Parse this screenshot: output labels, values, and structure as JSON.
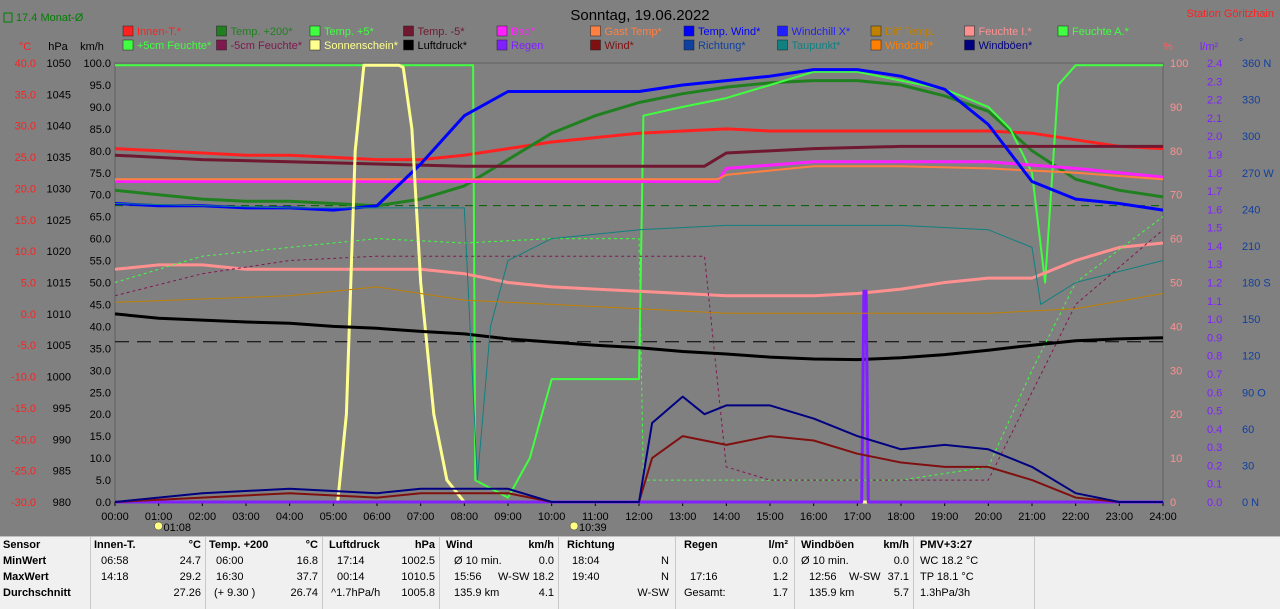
{
  "title": "Sonntag, 19.06.2022",
  "station": "Station Göritzhain",
  "avg_label": "17.4 Monat-Ø",
  "legend": [
    {
      "label": "Innen-T.*",
      "color": "#ff2020"
    },
    {
      "label": "Temp. +200*",
      "color": "#208020"
    },
    {
      "label": "Temp. +5*",
      "color": "#40ff40"
    },
    {
      "label": "Temp. -5*",
      "color": "#701830"
    },
    {
      "label": "Bad*",
      "color": "#ff20ff"
    },
    {
      "label": "Gast Temp*",
      "color": "#ff8040"
    },
    {
      "label": "Temp. Wind*",
      "color": "#0000ff"
    },
    {
      "label": "Windchill X*",
      "color": "#2020ff"
    },
    {
      "label": "Diff Temp.",
      "color": "#c08000"
    },
    {
      "label": "Feuchte I.*",
      "color": "#ff9090"
    },
    {
      "label": "Feuchte A.*",
      "color": "#40ff40"
    },
    {
      "label": "+5cm Feuchte*",
      "color": "#40ff40"
    },
    {
      "label": "-5cm Feuchte*",
      "color": "#801850"
    },
    {
      "label": "Sonnenschein*",
      "color": "#ffff90"
    },
    {
      "label": "Luftdruck*",
      "color": "#000000"
    },
    {
      "label": "Regen",
      "color": "#8020ff"
    },
    {
      "label": "Wind*",
      "color": "#801010"
    },
    {
      "label": "Richtung*",
      "color": "#1040a0"
    },
    {
      "label": "Taupunkt*",
      "color": "#108080"
    },
    {
      "label": "Windchill*",
      "color": "#ff8000"
    },
    {
      "label": "Windböen*",
      "color": "#000080"
    }
  ],
  "axis_headers": {
    "temp": "°C",
    "pressure": "hPa",
    "wind": "km/h",
    "percent": "%",
    "rain": "l/m²",
    "dir": "°"
  },
  "stats": {
    "headers": {
      "sensor": "Sensor",
      "innen": "Innen-T.",
      "innen_u": "°C",
      "temp": "Temp. +200",
      "temp_u": "°C",
      "druck": "Luftdruck",
      "druck_u": "hPa",
      "wind": "Wind",
      "wind_u": "km/h",
      "richtung": "Richtung",
      "regen": "Regen",
      "regen_u": "l/m²",
      "boeen": "Windböen",
      "boeen_u": "km/h",
      "pmv": "PMV+3:27"
    },
    "rows": [
      {
        "label": "MinWert",
        "innen_t": "06:58",
        "innen_v": "24.7",
        "temp_t": "06:00",
        "temp_v": "16.8",
        "druck_t": "17:14",
        "druck_v": "1002.5",
        "wind_t": "Ø 10 min.",
        "wind_v": "0.0",
        "richt_t": "18:04",
        "richt_v": "N",
        "regen_t": "",
        "regen_v": "0.0",
        "boeen_t": "Ø 10 min.",
        "boeen_v": "0.0",
        "pmv": "WC 18.2 °C"
      },
      {
        "label": "MaxWert",
        "innen_t": "14:18",
        "innen_v": "29.2",
        "temp_t": "16:30",
        "temp_v": "37.7",
        "druck_t": "00:14",
        "druck_v": "1010.5",
        "wind_t": "15:56",
        "wind_m": "W-SW",
        "wind_v": "18.2",
        "richt_t": "19:40",
        "richt_v": "N",
        "regen_t": "17:16",
        "regen_v": "1.2",
        "boeen_t": "12:56",
        "boeen_m": "W-SW",
        "boeen_v": "37.1",
        "pmv": "TP 18.1 °C"
      },
      {
        "label": "Durchschnitt",
        "innen_t": "",
        "innen_v": "27.26",
        "temp_t": "(+ 9.30 )",
        "temp_v": "26.74",
        "druck_t": "^1.7hPa/h",
        "druck_v": "1005.8",
        "wind_t": "135.9 km",
        "wind_v": "4.1",
        "richt_t": "",
        "richt_v": "W-SW",
        "regen_t": "Gesamt:",
        "regen_v": "1.7",
        "boeen_t": "135.9 km",
        "boeen_v": "5.7",
        "pmv": "1.3hPa/3h"
      }
    ]
  },
  "markers": {
    "sunrise": "01:08",
    "sunset": "10:39"
  },
  "chart_data": {
    "type": "line",
    "title": "Sonntag, 19.06.2022",
    "x_ticks": [
      "00:00",
      "01:00",
      "02:00",
      "03:00",
      "04:00",
      "05:00",
      "06:00",
      "07:00",
      "08:00",
      "09:00",
      "10:00",
      "11:00",
      "12:00",
      "13:00",
      "14:00",
      "15:00",
      "16:00",
      "17:00",
      "18:00",
      "19:00",
      "20:00",
      "21:00",
      "22:00",
      "23:00",
      "24:00"
    ],
    "xlim": [
      0,
      24
    ],
    "y_axes": {
      "temp": {
        "ticks": [
          "40.0",
          "35.0",
          "30.0",
          "25.0",
          "20.0",
          "15.0",
          "10.0",
          "5.0",
          "0.0",
          "-5.0",
          "-10.0",
          "-15.0",
          "-20.0",
          "-25.0",
          "-30.0"
        ],
        "range": [
          -30,
          40
        ]
      },
      "pressure": {
        "ticks": [
          "1050",
          "1045",
          "1040",
          "1035",
          "1030",
          "1025",
          "1020",
          "1015",
          "1010",
          "1005",
          "1000",
          "995",
          "990",
          "985",
          "980"
        ],
        "range": [
          980,
          1050
        ]
      },
      "wind": {
        "ticks": [
          "100.0",
          "95.0",
          "90.0",
          "85.0",
          "80.0",
          "75.0",
          "70.0",
          "65.0",
          "60.0",
          "55.0",
          "50.0",
          "45.0",
          "40.0",
          "35.0",
          "30.0",
          "25.0",
          "20.0",
          "15.0",
          "10.0",
          "5.0",
          "0.0"
        ],
        "range": [
          0,
          100
        ]
      },
      "percent": {
        "ticks": [
          "100",
          "90",
          "80",
          "70",
          "60",
          "50",
          "40",
          "30",
          "20",
          "10",
          "0"
        ],
        "range": [
          0,
          100
        ]
      },
      "rain": {
        "ticks": [
          "2.4",
          "2.3",
          "2.2",
          "2.1",
          "2.0",
          "1.9",
          "1.8",
          "1.7",
          "1.6",
          "1.5",
          "1.4",
          "1.3",
          "1.2",
          "1.1",
          "1.0",
          "0.9",
          "0.8",
          "0.7",
          "0.6",
          "0.5",
          "0.4",
          "0.3",
          "0.2",
          "0.1",
          "0.0"
        ],
        "range": [
          0,
          2.5
        ]
      },
      "dir": {
        "ticks": [
          "360 N",
          "330",
          "300",
          "270 W",
          "240",
          "210",
          "180 S",
          "150",
          "120",
          "90 O",
          "60",
          "30",
          "0 N"
        ],
        "range": [
          0,
          360
        ]
      }
    },
    "series": [
      {
        "name": "Innen-T.*",
        "color": "#ff2020",
        "width": 3,
        "axis": "wind",
        "x": [
          0,
          1,
          2,
          3,
          4,
          5,
          6,
          7,
          8,
          9,
          10,
          11,
          12,
          13,
          14,
          15,
          16,
          17,
          18,
          19,
          20,
          21,
          22,
          23,
          24
        ],
        "y": [
          80.5,
          80,
          79.5,
          79,
          79,
          78.5,
          78,
          78,
          79,
          80.5,
          82,
          83,
          84,
          84.5,
          85,
          84.5,
          84.5,
          84.5,
          84.5,
          84.5,
          84.5,
          84,
          82.5,
          81,
          80.5
        ]
      },
      {
        "name": "Temp. +200*",
        "color": "#208020",
        "width": 3,
        "axis": "wind",
        "x": [
          0,
          1,
          2,
          3,
          4,
          5,
          6,
          7,
          8,
          9,
          10,
          11,
          12,
          13,
          14,
          15,
          16,
          17,
          18,
          19,
          20,
          21,
          22,
          23,
          24
        ],
        "y": [
          71,
          70,
          69,
          68.5,
          68.5,
          68,
          67.5,
          69,
          72,
          78,
          84,
          88,
          91,
          93,
          94.5,
          95.5,
          96,
          96,
          95,
          92.5,
          89,
          80,
          73.5,
          71,
          69.5
        ]
      },
      {
        "name": "Temp. +5*",
        "color": "#40ff40",
        "width": 2,
        "axis": "wind",
        "x": [
          0,
          0.5,
          8.2,
          8.25,
          9,
          9.5,
          10,
          11,
          12,
          12.1,
          13,
          14,
          15,
          16,
          17,
          18,
          19,
          20,
          20.5,
          21,
          21.3,
          21.6,
          22,
          24
        ],
        "y": [
          99.5,
          99.5,
          99.5,
          5,
          1,
          10,
          28,
          28,
          28,
          88,
          90,
          92,
          95,
          98,
          98,
          96,
          94,
          90,
          85,
          75,
          50,
          95,
          99.5,
          99.5
        ]
      },
      {
        "name": "Temp. -5*",
        "color": "#701830",
        "width": 3,
        "axis": "wind",
        "x": [
          0,
          2,
          4,
          6,
          8,
          10,
          12,
          13.5,
          14,
          16,
          18,
          20,
          22,
          24
        ],
        "y": [
          79,
          78,
          77.5,
          77,
          76.5,
          76.5,
          76.5,
          76.5,
          79.5,
          80.5,
          81,
          81,
          81,
          81
        ]
      },
      {
        "name": "Bad*",
        "color": "#ff20ff",
        "width": 3,
        "axis": "wind",
        "x": [
          0,
          13.8,
          14,
          16,
          18,
          20,
          22,
          24
        ],
        "y": [
          73,
          73,
          76,
          77.5,
          77.5,
          77.5,
          76,
          74
        ]
      },
      {
        "name": "Gast Temp*",
        "color": "#ff8040",
        "width": 2,
        "axis": "wind",
        "x": [
          0,
          13.8,
          14,
          16,
          18,
          20,
          22,
          24
        ],
        "y": [
          73.5,
          73.5,
          74.5,
          76.5,
          76.5,
          76,
          75,
          73.5
        ]
      },
      {
        "name": "Temp. Wind*",
        "color": "#0000ff",
        "width": 3,
        "axis": "wind",
        "x": [
          0,
          1,
          2,
          3,
          4,
          5,
          6,
          7,
          8,
          9,
          10,
          11,
          12,
          13,
          14,
          15,
          16,
          17,
          18,
          19,
          20,
          21,
          22,
          23,
          24
        ],
        "y": [
          68,
          67.5,
          67.5,
          67,
          67,
          66.5,
          67.5,
          77,
          88,
          93.5,
          93.5,
          93.5,
          93.5,
          95,
          96,
          97,
          98.5,
          98.5,
          97,
          94,
          86,
          73,
          69,
          68,
          66.5
        ]
      },
      {
        "name": "Feuchte I.*",
        "color": "#ff9090",
        "width": 3,
        "axis": "percent",
        "x": [
          0,
          1,
          2,
          3,
          4,
          5,
          6,
          7,
          8,
          9,
          10,
          11,
          12,
          13,
          14,
          15,
          16,
          17,
          18,
          19,
          20,
          21,
          22,
          23,
          24
        ],
        "y": [
          53,
          54,
          54,
          53,
          53,
          53,
          53,
          53,
          52,
          50,
          49,
          48.5,
          48,
          47.5,
          47,
          47,
          47,
          47.5,
          48.5,
          50,
          51,
          51,
          55,
          58,
          59
        ]
      },
      {
        "name": "+5cm Feuchte*",
        "color": "#40ff40",
        "width": 1,
        "dash": "3,3",
        "axis": "percent",
        "x": [
          0,
          2,
          4,
          6,
          8,
          10,
          11,
          12,
          12.1,
          14,
          16,
          18,
          20,
          21,
          22,
          24
        ],
        "y": [
          50,
          56,
          58,
          60,
          59,
          60,
          60,
          60,
          5,
          5,
          5,
          5,
          8,
          30,
          50,
          65
        ]
      },
      {
        "name": "-5cm Feuchte*",
        "color": "#801850",
        "width": 1,
        "dash": "3,3",
        "axis": "percent",
        "x": [
          0,
          2,
          4,
          6,
          8,
          10,
          12,
          13.5,
          14,
          15,
          20,
          21,
          22,
          24
        ],
        "y": [
          47,
          52,
          55,
          56,
          56,
          56,
          56,
          56,
          8,
          5,
          5,
          25,
          45,
          62
        ]
      },
      {
        "name": "Sonnenschein*",
        "color": "#ffff90",
        "width": 3,
        "axis": "wind",
        "x": [
          0,
          5.1,
          5.3,
          5.5,
          5.7,
          6,
          6.5,
          6.6,
          6.8,
          7,
          7.3,
          7.6,
          8,
          9,
          24
        ],
        "y": [
          0,
          0,
          20,
          80,
          99.5,
          99.5,
          99.5,
          99,
          85,
          50,
          20,
          5,
          0,
          0,
          0
        ]
      },
      {
        "name": "Luftdruck*",
        "color": "#000000",
        "width": 3,
        "axis": "pressure",
        "x": [
          0,
          1,
          2,
          3,
          4,
          5,
          6,
          7,
          8,
          9,
          10,
          11,
          12,
          13,
          14,
          15,
          16,
          17,
          18,
          19,
          20,
          21,
          22,
          23,
          24
        ],
        "y": [
          1010,
          1009.3,
          1009,
          1008.7,
          1008.5,
          1008,
          1007.7,
          1007.2,
          1006.8,
          1006,
          1005.5,
          1005,
          1004.6,
          1004,
          1003.6,
          1003.1,
          1002.8,
          1002.7,
          1003,
          1003.5,
          1004.2,
          1005,
          1005.7,
          1006,
          1006.2
        ]
      },
      {
        "name": "Regen",
        "color": "#8020ff",
        "width": 3,
        "axis": "rain",
        "x": [
          0,
          17.1,
          17.15,
          17.2,
          17.25,
          24
        ],
        "y": [
          0,
          0,
          1.2,
          1.2,
          0,
          0
        ]
      },
      {
        "name": "Wind*",
        "color": "#801010",
        "width": 2,
        "axis": "wind",
        "x": [
          0,
          2,
          4,
          6,
          7,
          8,
          9,
          10,
          12,
          12.3,
          13,
          13.5,
          14,
          15,
          16,
          17,
          18,
          19,
          20,
          21,
          22,
          23,
          24
        ],
        "y": [
          0,
          1,
          2,
          1,
          2,
          2,
          2,
          0,
          0,
          10,
          15,
          14,
          13,
          15,
          14,
          11,
          9,
          8,
          8,
          5,
          1,
          0,
          0
        ]
      },
      {
        "name": "Windböen*",
        "color": "#000080",
        "width": 2,
        "axis": "wind",
        "x": [
          0,
          2,
          4,
          6,
          7,
          8,
          9,
          10,
          12,
          12.3,
          13,
          13.5,
          14,
          15,
          16,
          17,
          18,
          19,
          20,
          21,
          22,
          23,
          24
        ],
        "y": [
          0,
          2,
          3,
          2,
          3,
          3,
          3,
          0,
          0,
          18,
          24,
          20,
          22,
          22,
          19,
          15,
          12,
          13,
          12,
          8,
          2,
          0,
          0
        ]
      },
      {
        "name": "Taupunkt*",
        "color": "#108080",
        "width": 1,
        "axis": "wind",
        "x": [
          0,
          4,
          8,
          8.3,
          8.6,
          9,
          10,
          12,
          14,
          16,
          18,
          20,
          21,
          21.2,
          22,
          24
        ],
        "y": [
          68,
          67,
          67,
          5,
          40,
          55,
          60,
          62,
          63,
          63,
          63,
          62,
          58,
          45,
          50,
          55
        ]
      },
      {
        "name": "Diff Temp.",
        "color": "#c08000",
        "width": 1,
        "axis": "wind",
        "x": [
          0,
          4,
          6,
          8,
          10,
          12,
          14,
          16,
          18,
          20,
          22,
          24
        ],
        "y": [
          45.5,
          47,
          49,
          46,
          45,
          44,
          43,
          43,
          43,
          43,
          44,
          47.5
        ]
      }
    ],
    "reference_lines": [
      {
        "name": "Monat-Ø",
        "axis": "wind",
        "y": 67.5,
        "color": "#006000",
        "dash": "8,6"
      },
      {
        "name": "Luftdruck-Ref",
        "axis": "wind",
        "y": 36.5,
        "color": "#000000",
        "dash": "14,8"
      }
    ]
  }
}
